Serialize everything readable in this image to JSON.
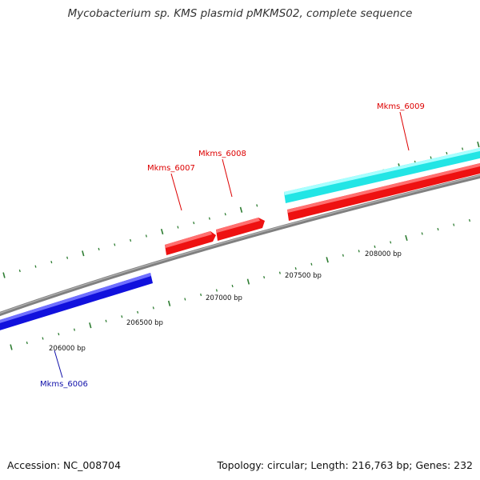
{
  "title": "Mycobacterium sp. KMS plasmid pMKMS02, complete sequence",
  "footer": {
    "accession": "Accession: NC_008704",
    "summary": "Topology: circular; Length: 216,763 bp; Genes: 232"
  },
  "colors": {
    "backbone": "#808080",
    "tick": "#2e7d32",
    "forward_gene": "#ee1111",
    "forward_label": "#dd0000",
    "reverse_gene": "#1111dd",
    "reverse_label": "#1111aa",
    "feature_cyan": "#22e5e5"
  },
  "positions": [
    {
      "bp": 206000,
      "label": "206000 bp"
    },
    {
      "bp": 206500,
      "label": "206500 bp"
    },
    {
      "bp": 207000,
      "label": "207000 bp"
    },
    {
      "bp": 207500,
      "label": "207500 bp"
    },
    {
      "bp": 208000,
      "label": "208000 bp"
    }
  ],
  "genes": [
    {
      "name": "Mkms_6006",
      "strand": "reverse"
    },
    {
      "name": "Mkms_6007",
      "strand": "forward"
    },
    {
      "name": "Mkms_6008",
      "strand": "forward"
    },
    {
      "name": "Mkms_6009",
      "strand": "forward"
    }
  ]
}
